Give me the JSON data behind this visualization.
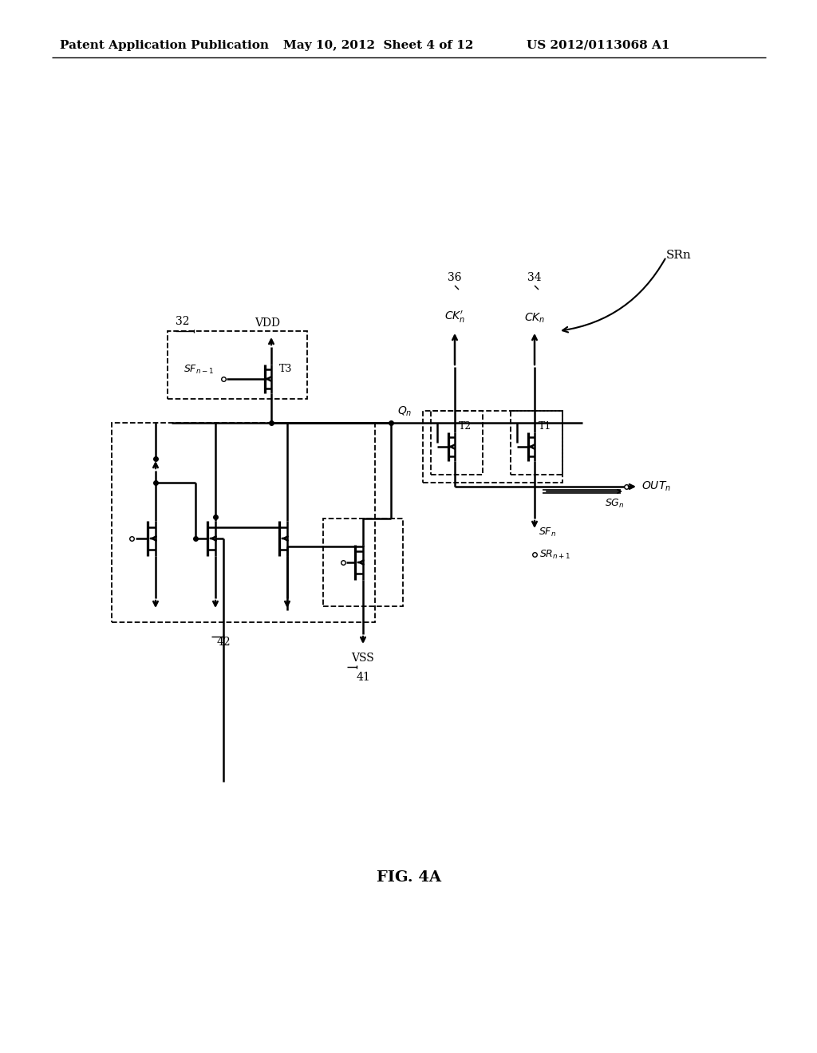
{
  "bg_color": "#ffffff",
  "line_color": "#000000",
  "header_left": "Patent Application Publication",
  "header_mid": "May 10, 2012  Sheet 4 of 12",
  "header_right": "US 2012/0113068 A1",
  "fig_label": "FIG. 4A"
}
